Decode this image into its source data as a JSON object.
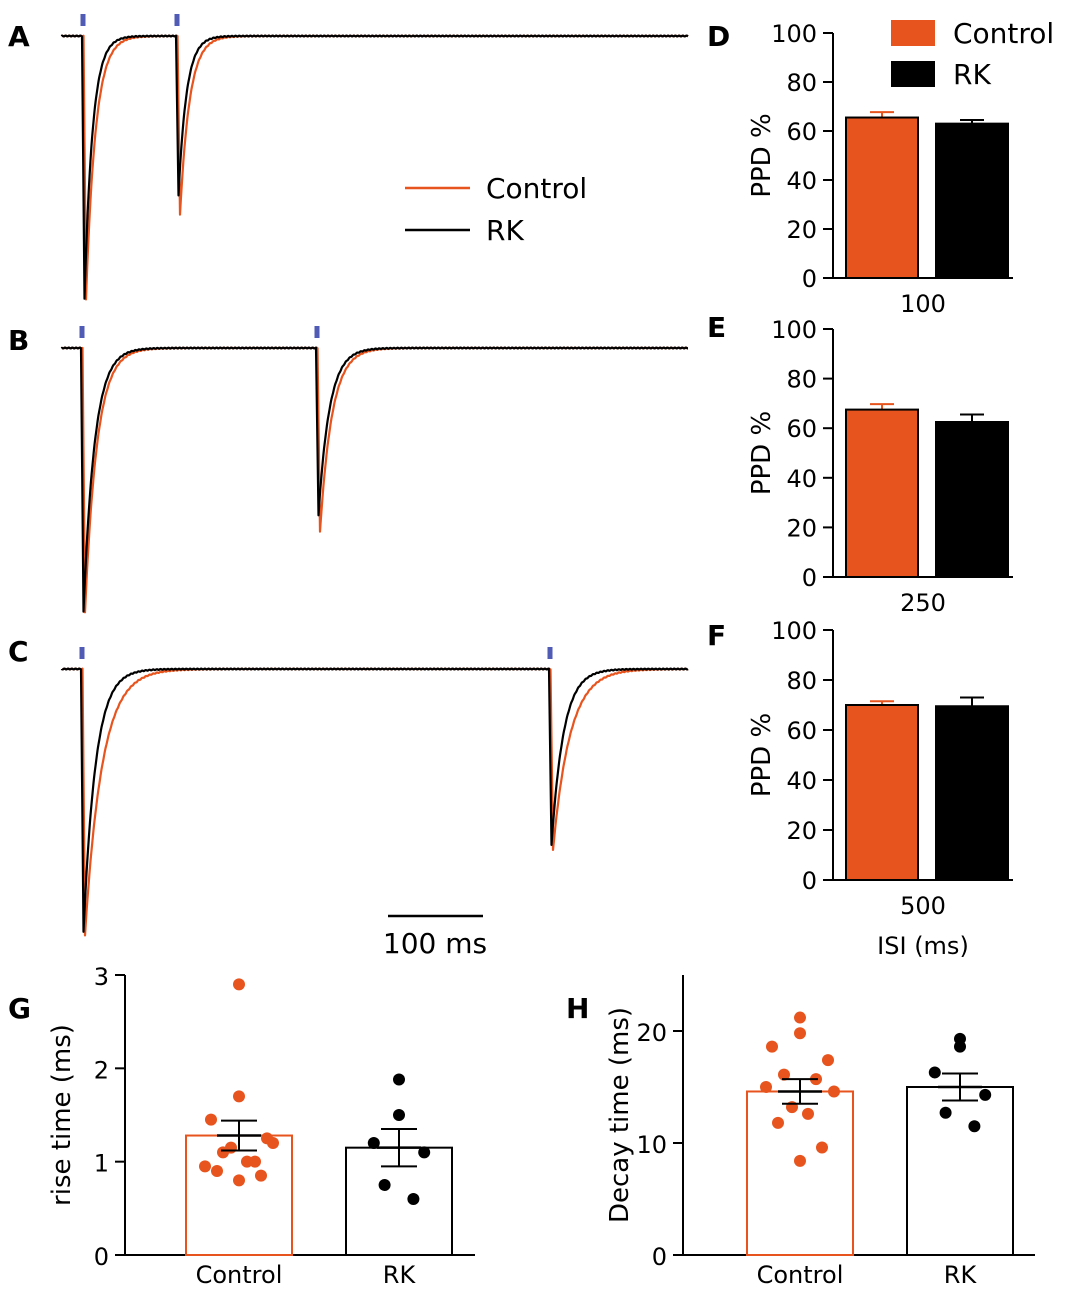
{
  "colors": {
    "control": "#E8541E",
    "rk": "#000000",
    "stimulus": "#4F5BB5"
  },
  "legend_traces": {
    "control": "Control",
    "rk": "RK"
  },
  "legend_bars": {
    "control": "Control",
    "rk": "RK"
  },
  "scale_bar_label": "100 ms",
  "chart_data": [
    {
      "panel": "A",
      "type": "line",
      "title": "",
      "isi_ms": 100,
      "series": [
        {
          "name": "Control"
        },
        {
          "name": "RK"
        }
      ],
      "description_values": {
        "stim_times_ms": [
          0,
          100
        ]
      }
    },
    {
      "panel": "B",
      "type": "line",
      "title": "",
      "isi_ms": 250,
      "series": [
        {
          "name": "Control"
        },
        {
          "name": "RK"
        }
      ],
      "description_values": {
        "stim_times_ms": [
          0,
          250
        ]
      }
    },
    {
      "panel": "C",
      "type": "line",
      "title": "",
      "isi_ms": 500,
      "series": [
        {
          "name": "Control"
        },
        {
          "name": "RK"
        }
      ],
      "description_values": {
        "stim_times_ms": [
          0,
          500
        ]
      }
    },
    {
      "panel": "D",
      "type": "bar",
      "categories": [
        "100"
      ],
      "xlabel": "",
      "ylabel": "PPD %",
      "ylim": [
        0,
        100
      ],
      "yticks": [
        "0",
        "20",
        "40",
        "60",
        "80",
        "100"
      ],
      "series": [
        {
          "name": "Control",
          "values": [
            65.5
          ],
          "sem": [
            2.2
          ]
        },
        {
          "name": "RK",
          "values": [
            63
          ],
          "sem": [
            1.5
          ]
        }
      ]
    },
    {
      "panel": "E",
      "type": "bar",
      "categories": [
        "250"
      ],
      "xlabel": "",
      "ylabel": "PPD %",
      "ylim": [
        0,
        100
      ],
      "yticks": [
        "0",
        "20",
        "40",
        "60",
        "80",
        "100"
      ],
      "series": [
        {
          "name": "Control",
          "values": [
            67.5
          ],
          "sem": [
            2.2
          ]
        },
        {
          "name": "RK",
          "values": [
            62.5
          ],
          "sem": [
            3
          ]
        }
      ]
    },
    {
      "panel": "F",
      "type": "bar",
      "categories": [
        "500"
      ],
      "xlabel": "ISI (ms)",
      "ylabel": "PPD %",
      "ylim": [
        0,
        100
      ],
      "yticks": [
        "0",
        "20",
        "40",
        "60",
        "80",
        "100"
      ],
      "series": [
        {
          "name": "Control",
          "values": [
            70
          ],
          "sem": [
            1.5
          ]
        },
        {
          "name": "RK",
          "values": [
            69.5
          ],
          "sem": [
            3.5
          ]
        }
      ]
    },
    {
      "panel": "G",
      "type": "scatter",
      "categories": [
        "Control",
        "RK"
      ],
      "ylabel": "rise time (ms)",
      "ylim": [
        0,
        3
      ],
      "yticks": [
        "0",
        "1",
        "2",
        "3"
      ],
      "series": [
        {
          "name": "Control",
          "mean": 1.28,
          "sem": 0.16,
          "points": [
            2.9,
            1.7,
            1.45,
            1.25,
            1.1,
            1.0,
            0.95,
            1.2,
            1.15,
            1.0,
            0.9,
            0.85,
            0.8
          ]
        },
        {
          "name": "RK",
          "mean": 1.15,
          "sem": 0.2,
          "points": [
            1.88,
            1.5,
            1.2,
            1.1,
            0.75,
            0.6
          ]
        }
      ]
    },
    {
      "panel": "H",
      "type": "scatter",
      "categories": [
        "Control",
        "RK"
      ],
      "ylabel": "Decay time (ms)",
      "ylim": [
        0,
        25
      ],
      "yticks": [
        "0",
        "10",
        "20"
      ],
      "series": [
        {
          "name": "Control",
          "mean": 14.6,
          "sem": 1.1,
          "points": [
            21.2,
            19.8,
            18.6,
            17.4,
            16.1,
            15.7,
            15.0,
            14.6,
            13.2,
            12.6,
            11.8,
            9.6,
            8.4
          ]
        },
        {
          "name": "RK",
          "mean": 15.0,
          "sem": 1.2,
          "points": [
            19.3,
            18.6,
            16.3,
            14.3,
            12.7,
            11.5
          ]
        }
      ]
    }
  ]
}
